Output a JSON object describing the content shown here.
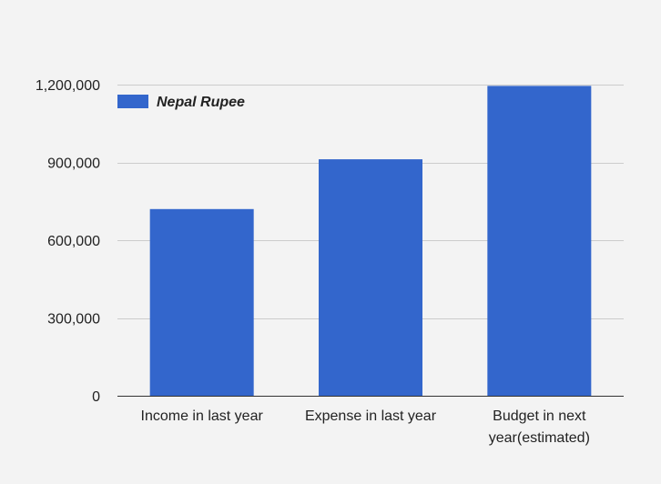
{
  "chart_data": {
    "type": "bar",
    "categories": [
      [
        "Income in last year"
      ],
      [
        "Expense in last year"
      ],
      [
        "Budget in next",
        "year(estimated)"
      ]
    ],
    "series": [
      {
        "name": "Nepal Rupee",
        "values": [
          720000,
          912000,
          1195000
        ],
        "color": "#3366cc"
      }
    ],
    "ylim": [
      0,
      1200000
    ],
    "yticks": [
      0,
      300000,
      600000,
      900000,
      1200000
    ],
    "ytick_labels": [
      "0",
      "300,000",
      "600,000",
      "900,000",
      "1,200,000"
    ],
    "grid": true,
    "legend_position": "top-left",
    "title": "",
    "xlabel": "",
    "ylabel": ""
  }
}
